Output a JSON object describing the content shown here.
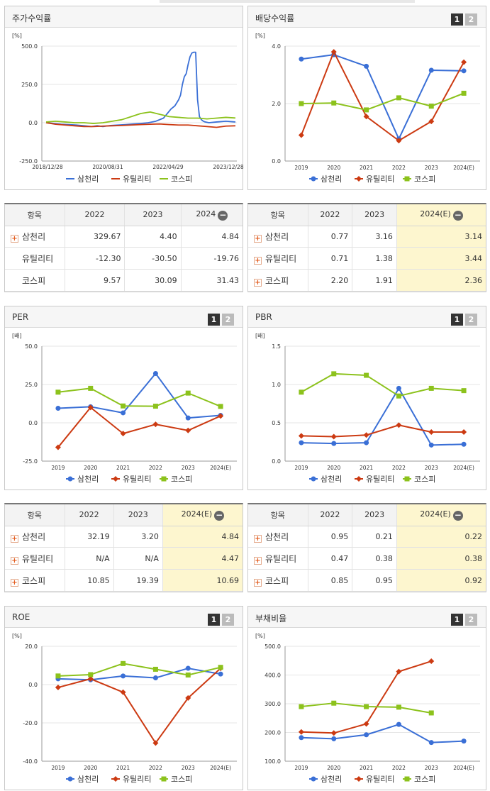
{
  "charts": {
    "stock_return": {
      "title": "주가수익률",
      "unit": "[%]",
      "yticks": [
        "500.0",
        "250.0",
        "0.0",
        "-250.0"
      ],
      "xticks": [
        "2018/12/28",
        "2020/08/31",
        "2022/04/29",
        "2023/12/28"
      ],
      "legend": [
        "삼천리",
        "유틸리티",
        "코스피"
      ]
    },
    "dividend": {
      "title": "배당수익률",
      "btn1": "1",
      "btn2": "2",
      "unit": "[%]",
      "yticks": [
        "4.0",
        "2.0",
        "0.0"
      ],
      "xticks": [
        "2019",
        "2020",
        "2021",
        "2022",
        "2023",
        "2024(E)"
      ],
      "legend": [
        "삼천리",
        "유틸리티",
        "코스피"
      ]
    },
    "per": {
      "title": "PER",
      "btn1": "1",
      "btn2": "2",
      "unit": "[배]",
      "yticks": [
        "50.0",
        "25.0",
        "0.0",
        "-25.0"
      ],
      "xticks": [
        "2019",
        "2020",
        "2021",
        "2022",
        "2023",
        "2024(E)"
      ],
      "legend": [
        "삼천리",
        "유틸리티",
        "코스피"
      ]
    },
    "pbr": {
      "title": "PBR",
      "btn1": "1",
      "btn2": "2",
      "unit": "[배]",
      "yticks": [
        "1.5",
        "1.0",
        "0.5",
        "0.0"
      ],
      "xticks": [
        "2019",
        "2020",
        "2021",
        "2022",
        "2023",
        "2024(E)"
      ],
      "legend": [
        "삼천리",
        "유틸리티",
        "코스피"
      ]
    },
    "roe": {
      "title": "ROE",
      "btn1": "1",
      "btn2": "2",
      "unit": "[%]",
      "yticks": [
        "20.0",
        "0.0",
        "-20.0",
        "-40.0"
      ],
      "xticks": [
        "2019",
        "2020",
        "2021",
        "2022",
        "2023",
        "2024(E)"
      ],
      "legend": [
        "삼천리",
        "유틸리티",
        "코스피"
      ]
    },
    "debt": {
      "title": "부채비율",
      "btn1": "1",
      "btn2": "2",
      "unit": "[%]",
      "yticks": [
        "500.0",
        "400.0",
        "300.0",
        "200.0",
        "100.0"
      ],
      "xticks": [
        "2019",
        "2020",
        "2021",
        "2022",
        "2023",
        "2024(E)"
      ],
      "legend": [
        "삼천리",
        "유틸리티",
        "코스피"
      ]
    }
  },
  "tables": {
    "stock_return": {
      "headers": [
        "항목",
        "2022",
        "2023",
        "2024"
      ],
      "minus": "−",
      "rows": [
        {
          "name": "삼천리",
          "v": [
            "329.67",
            "4.40",
            "4.84"
          ]
        },
        {
          "name": "유틸리티",
          "v": [
            "-12.30",
            "-30.50",
            "-19.76"
          ]
        },
        {
          "name": "코스피",
          "v": [
            "9.57",
            "30.09",
            "31.43"
          ]
        }
      ]
    },
    "dividend": {
      "headers": [
        "항목",
        "2022",
        "2023",
        "2024(E)"
      ],
      "minus": "−",
      "rows": [
        {
          "name": "삼천리",
          "v": [
            "0.77",
            "3.16",
            "3.14"
          ]
        },
        {
          "name": "유틸리티",
          "v": [
            "0.71",
            "1.38",
            "3.44"
          ]
        },
        {
          "name": "코스피",
          "v": [
            "2.20",
            "1.91",
            "2.36"
          ]
        }
      ]
    },
    "per": {
      "headers": [
        "항목",
        "2022",
        "2023",
        "2024(E)"
      ],
      "minus": "−",
      "rows": [
        {
          "name": "삼천리",
          "v": [
            "32.19",
            "3.20",
            "4.84"
          ]
        },
        {
          "name": "유틸리티",
          "v": [
            "N/A",
            "N/A",
            "4.47"
          ]
        },
        {
          "name": "코스피",
          "v": [
            "10.85",
            "19.39",
            "10.69"
          ]
        }
      ]
    },
    "pbr": {
      "headers": [
        "항목",
        "2022",
        "2023",
        "2024(E)"
      ],
      "minus": "−",
      "rows": [
        {
          "name": "삼천리",
          "v": [
            "0.95",
            "0.21",
            "0.22"
          ]
        },
        {
          "name": "유틸리티",
          "v": [
            "0.47",
            "0.38",
            "0.38"
          ]
        },
        {
          "name": "코스피",
          "v": [
            "0.85",
            "0.95",
            "0.92"
          ]
        }
      ]
    }
  },
  "colors": {
    "samchully": "#3a6fd6",
    "utility": "#cc3a12",
    "kospi": "#8cc21c"
  },
  "chart_data": [
    {
      "id": "stock_return",
      "type": "line",
      "title": "주가수익률",
      "ylabel": "[%]",
      "ylim": [
        -250,
        500
      ],
      "xticks": [
        "2018/12/28",
        "2020/08/31",
        "2022/04/29",
        "2023/12/28"
      ],
      "series": [
        {
          "name": "삼천리",
          "x": [
            0,
            0.04,
            0.08,
            0.12,
            0.16,
            0.2,
            0.24,
            0.27,
            0.3,
            0.34,
            0.38,
            0.42,
            0.46,
            0.5,
            0.54,
            0.58,
            0.62,
            0.64,
            0.66,
            0.68,
            0.7,
            0.71,
            0.72,
            0.73,
            0.74,
            0.75,
            0.76,
            0.77,
            0.78,
            0.79,
            0.8,
            0.81,
            0.82,
            0.83,
            0.84,
            0.86,
            0.9,
            0.95,
            1.0
          ],
          "values": [
            0,
            -5,
            -10,
            -12,
            -15,
            -20,
            -25,
            -20,
            -25,
            -18,
            -15,
            -12,
            -8,
            -5,
            0,
            10,
            30,
            60,
            90,
            110,
            150,
            180,
            250,
            300,
            320,
            380,
            430,
            455,
            460,
            460,
            150,
            40,
            20,
            10,
            5,
            0,
            5,
            10,
            5
          ]
        },
        {
          "name": "유틸리티",
          "x": [
            0,
            0.05,
            0.1,
            0.15,
            0.2,
            0.25,
            0.3,
            0.35,
            0.4,
            0.45,
            0.5,
            0.55,
            0.6,
            0.65,
            0.7,
            0.75,
            0.8,
            0.85,
            0.9,
            0.95,
            1.0
          ],
          "values": [
            0,
            -10,
            -15,
            -20,
            -25,
            -25,
            -22,
            -20,
            -18,
            -15,
            -12,
            -10,
            -8,
            -12,
            -15,
            -15,
            -20,
            -25,
            -30,
            -22,
            -20
          ]
        },
        {
          "name": "코스피",
          "x": [
            0,
            0.05,
            0.1,
            0.15,
            0.2,
            0.25,
            0.3,
            0.35,
            0.4,
            0.45,
            0.5,
            0.55,
            0.6,
            0.65,
            0.7,
            0.75,
            0.8,
            0.85,
            0.9,
            0.95,
            1.0
          ],
          "values": [
            5,
            10,
            5,
            0,
            0,
            -5,
            0,
            10,
            20,
            40,
            60,
            70,
            55,
            40,
            35,
            30,
            30,
            25,
            30,
            35,
            31
          ]
        }
      ]
    },
    {
      "id": "dividend",
      "type": "line",
      "title": "배당수익률",
      "ylabel": "[%]",
      "ylim": [
        0,
        4
      ],
      "categories": [
        "2019",
        "2020",
        "2021",
        "2022",
        "2023",
        "2024(E)"
      ],
      "series": [
        {
          "name": "삼천리",
          "values": [
            3.55,
            3.7,
            3.3,
            0.77,
            3.16,
            3.14
          ]
        },
        {
          "name": "유틸리티",
          "values": [
            0.9,
            3.8,
            1.55,
            0.71,
            1.38,
            3.44
          ]
        },
        {
          "name": "코스피",
          "values": [
            2.0,
            2.02,
            1.78,
            2.2,
            1.91,
            2.36
          ]
        }
      ]
    },
    {
      "id": "per",
      "type": "line",
      "title": "PER",
      "ylabel": "[배]",
      "ylim": [
        -25,
        50
      ],
      "categories": [
        "2019",
        "2020",
        "2021",
        "2022",
        "2023",
        "2024(E)"
      ],
      "series": [
        {
          "name": "삼천리",
          "values": [
            9.5,
            10.5,
            6.5,
            32.19,
            3.2,
            4.84
          ]
        },
        {
          "name": "유틸리티",
          "values": [
            -16,
            10,
            -7,
            -1,
            -5,
            4.47
          ]
        },
        {
          "name": "코스피",
          "values": [
            20,
            22.5,
            11,
            10.85,
            19.39,
            10.69
          ]
        }
      ]
    },
    {
      "id": "pbr",
      "type": "line",
      "title": "PBR",
      "ylabel": "[배]",
      "ylim": [
        0,
        1.5
      ],
      "categories": [
        "2019",
        "2020",
        "2021",
        "2022",
        "2023",
        "2024(E)"
      ],
      "series": [
        {
          "name": "삼천리",
          "values": [
            0.24,
            0.23,
            0.24,
            0.95,
            0.21,
            0.22
          ]
        },
        {
          "name": "유틸리티",
          "values": [
            0.33,
            0.32,
            0.34,
            0.47,
            0.38,
            0.38
          ]
        },
        {
          "name": "코스피",
          "values": [
            0.9,
            1.14,
            1.12,
            0.85,
            0.95,
            0.92
          ]
        }
      ]
    },
    {
      "id": "roe",
      "type": "line",
      "title": "ROE",
      "ylabel": "[%]",
      "ylim": [
        -40,
        20
      ],
      "categories": [
        "2019",
        "2020",
        "2021",
        "2022",
        "2023",
        "2024(E)"
      ],
      "series": [
        {
          "name": "삼천리",
          "values": [
            3,
            2.5,
            4.5,
            3.5,
            8.5,
            5.5
          ]
        },
        {
          "name": "유틸리티",
          "values": [
            -1.5,
            3,
            -4,
            -30.5,
            -7,
            8.5
          ]
        },
        {
          "name": "코스피",
          "values": [
            4.5,
            5.2,
            11,
            8,
            5,
            9
          ]
        }
      ]
    },
    {
      "id": "debt",
      "type": "line",
      "title": "부채비율",
      "ylabel": "[%]",
      "ylim": [
        100,
        500
      ],
      "categories": [
        "2019",
        "2020",
        "2021",
        "2022",
        "2023",
        "2024(E)"
      ],
      "series": [
        {
          "name": "삼천리",
          "values": [
            182,
            178,
            192,
            228,
            165,
            170
          ]
        },
        {
          "name": "유틸리티",
          "values": [
            202,
            198,
            230,
            412,
            448,
            null
          ]
        },
        {
          "name": "코스피",
          "values": [
            290,
            302,
            290,
            288,
            268,
            null
          ]
        }
      ]
    }
  ]
}
